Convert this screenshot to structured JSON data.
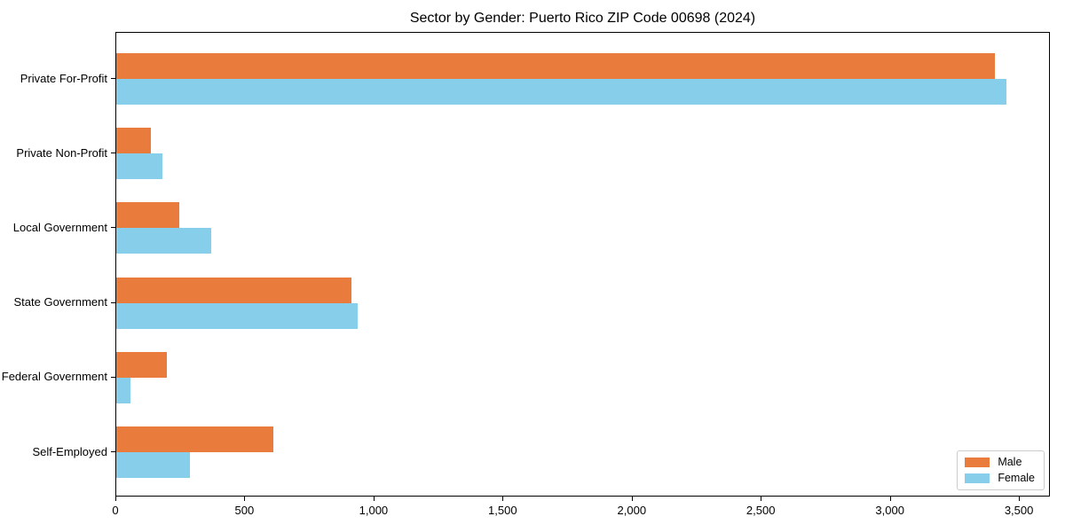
{
  "chart_data": {
    "type": "bar",
    "orientation": "horizontal",
    "title": "Sector by Gender: Puerto Rico ZIP Code 00698 (2024)",
    "categories": [
      "Private For-Profit",
      "Private Non-Profit",
      "Local Government",
      "State Government",
      "Federal Government",
      "Self-Employed"
    ],
    "series": [
      {
        "name": "Male",
        "color": "#E97B3D",
        "values": [
          3404,
          134,
          244,
          910,
          196,
          610
        ]
      },
      {
        "name": "Female",
        "color": "#87CEEB",
        "values": [
          3449,
          179,
          368,
          934,
          55,
          285
        ]
      }
    ],
    "xlabel": "",
    "ylabel": "",
    "xlim": [
      0,
      3620
    ],
    "xticks": [
      0,
      500,
      1000,
      1500,
      2000,
      2500,
      3000,
      3500
    ],
    "xtick_labels": [
      "0",
      "500",
      "1,000",
      "1,500",
      "2,000",
      "2,500",
      "3,000",
      "3,500"
    ],
    "legend_position": "lower right",
    "grid": false,
    "colors": {
      "spine": "#000000",
      "text": "#000000",
      "legend_border": "#cccccc",
      "background": "#ffffff"
    }
  }
}
